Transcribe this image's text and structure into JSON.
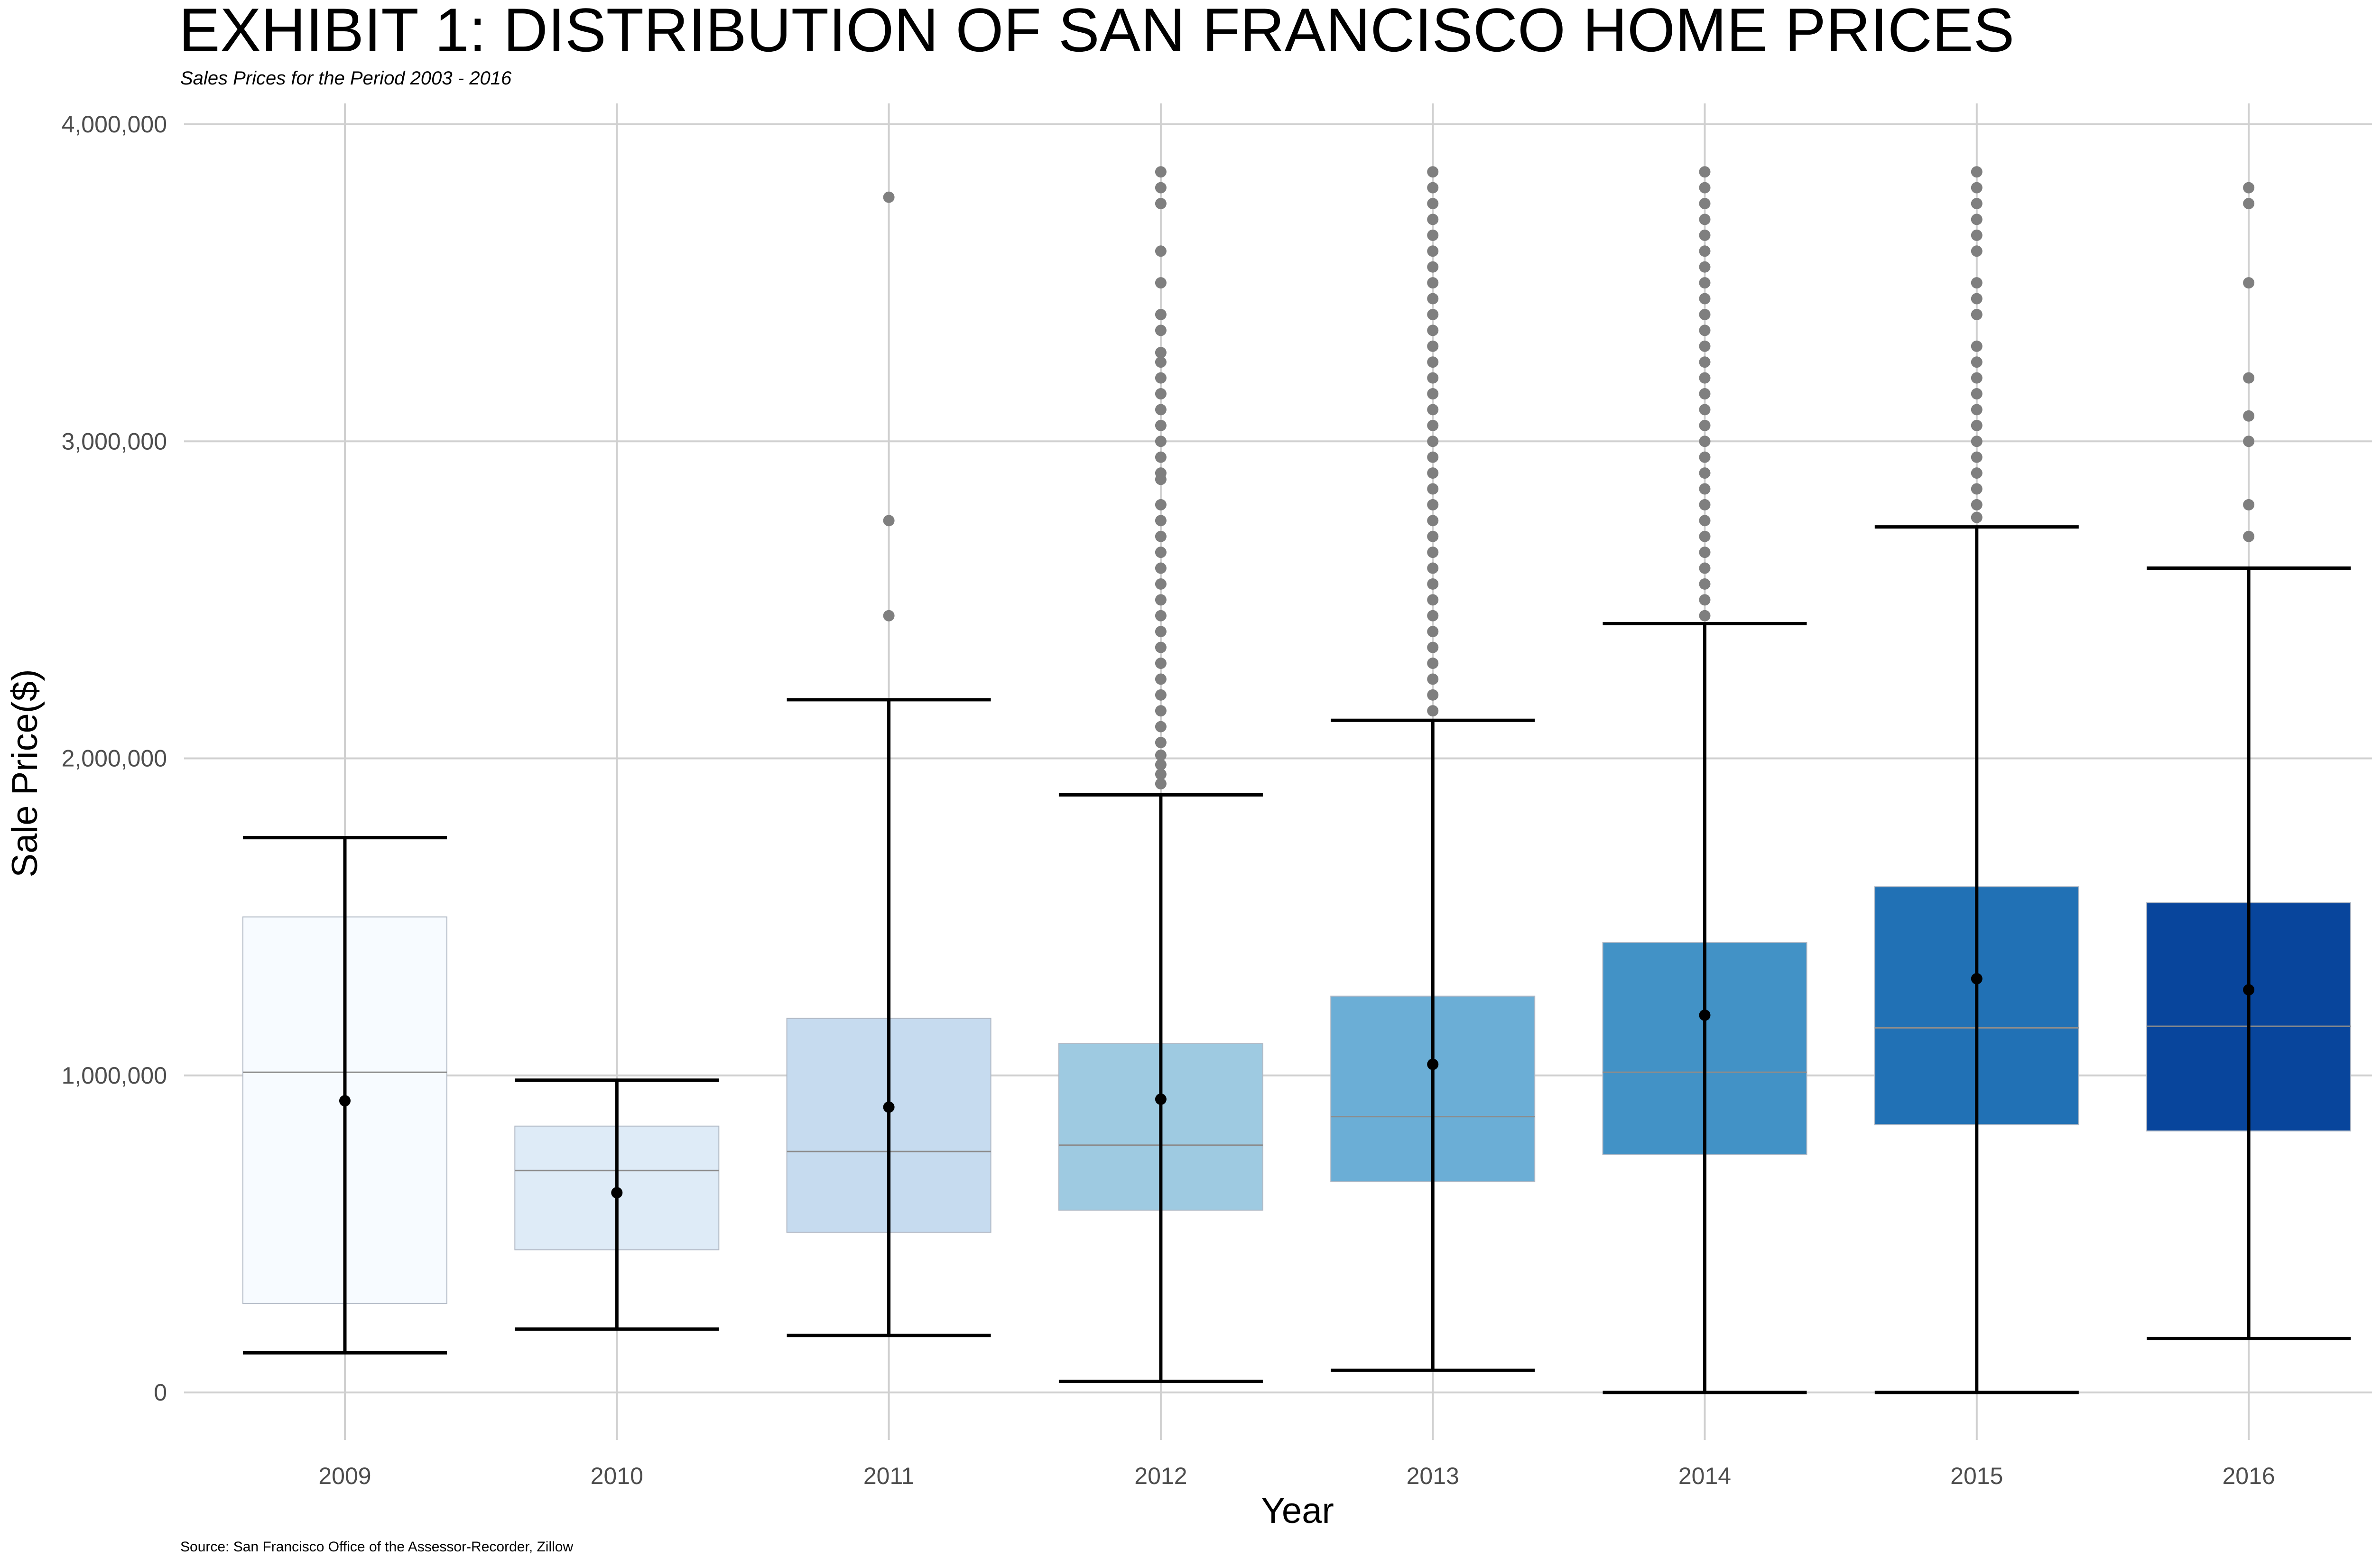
{
  "chart_data": {
    "type": "boxplot",
    "title": "EXHIBIT 1: DISTRIBUTION OF SAN FRANCISCO HOME PRICES",
    "subtitle": "Sales Prices for the Period 2003 - 2016",
    "xlabel": "Year",
    "ylabel": "Sale Price($)",
    "caption": "Source: San Francisco Office of the Assessor-Recorder, Zillow",
    "ylim": [
      -80000,
      4050000
    ],
    "yticks": [
      0,
      1000000,
      2000000,
      3000000,
      4000000
    ],
    "ytick_labels": [
      "0",
      "1,000,000",
      "2,000,000",
      "3,000,000",
      "4,000,000"
    ],
    "grid": true,
    "categories": [
      "2009",
      "2010",
      "2011",
      "2012",
      "2013",
      "2014",
      "2015",
      "2016"
    ],
    "boxes": [
      {
        "year": "2009",
        "q1": 280000,
        "median": 1010000,
        "q3": 1500000,
        "whisker_low": 125000,
        "whisker_high": 1750000,
        "mean": 920000,
        "color": "#f7fbff",
        "outliers": []
      },
      {
        "year": "2010",
        "q1": 450000,
        "median": 700000,
        "q3": 840000,
        "whisker_low": 200000,
        "whisker_high": 985000,
        "mean": 630000,
        "color": "#deebf7",
        "outliers": []
      },
      {
        "year": "2011",
        "q1": 505000,
        "median": 760000,
        "q3": 1180000,
        "whisker_low": 180000,
        "whisker_high": 2185000,
        "mean": 900000,
        "color": "#c6dbef",
        "outliers": [
          2450000,
          2750000,
          3770000
        ]
      },
      {
        "year": "2012",
        "q1": 575000,
        "median": 780000,
        "q3": 1100000,
        "whisker_low": 35000,
        "whisker_high": 1885000,
        "mean": 925000,
        "color": "#9ecae1",
        "outliers": [
          1920000,
          1950000,
          1980000,
          2010000,
          2050000,
          2100000,
          2150000,
          2200000,
          2250000,
          2300000,
          2350000,
          2400000,
          2450000,
          2500000,
          2550000,
          2600000,
          2650000,
          2700000,
          2750000,
          2800000,
          2880000,
          2900000,
          2950000,
          3000000,
          3050000,
          3100000,
          3150000,
          3200000,
          3250000,
          3280000,
          3350000,
          3400000,
          3500000,
          3600000,
          3750000,
          3800000,
          3850000
        ]
      },
      {
        "year": "2013",
        "q1": 665000,
        "median": 870000,
        "q3": 1250000,
        "whisker_low": 70000,
        "whisker_high": 2120000,
        "mean": 1035000,
        "color": "#6baed6",
        "outliers": [
          2150000,
          2200000,
          2250000,
          2300000,
          2350000,
          2400000,
          2450000,
          2500000,
          2550000,
          2600000,
          2650000,
          2700000,
          2750000,
          2800000,
          2850000,
          2900000,
          2950000,
          3000000,
          3050000,
          3100000,
          3150000,
          3200000,
          3250000,
          3300000,
          3350000,
          3400000,
          3450000,
          3500000,
          3550000,
          3600000,
          3650000,
          3700000,
          3750000,
          3800000,
          3850000
        ]
      },
      {
        "year": "2014",
        "q1": 750000,
        "median": 1010000,
        "q3": 1420000,
        "whisker_low": 0,
        "whisker_high": 2425000,
        "mean": 1190000,
        "color": "#4292c6",
        "outliers": [
          2450000,
          2500000,
          2550000,
          2600000,
          2650000,
          2700000,
          2750000,
          2800000,
          2850000,
          2900000,
          2950000,
          3000000,
          3050000,
          3100000,
          3150000,
          3200000,
          3250000,
          3300000,
          3350000,
          3400000,
          3450000,
          3500000,
          3550000,
          3600000,
          3650000,
          3700000,
          3750000,
          3800000,
          3850000
        ]
      },
      {
        "year": "2015",
        "q1": 845000,
        "median": 1150000,
        "q3": 1595000,
        "whisker_low": 0,
        "whisker_high": 2730000,
        "mean": 1305000,
        "color": "#2171b5",
        "outliers": [
          2760000,
          2800000,
          2850000,
          2900000,
          2950000,
          3000000,
          3050000,
          3100000,
          3150000,
          3200000,
          3250000,
          3300000,
          3400000,
          3450000,
          3500000,
          3600000,
          3650000,
          3700000,
          3750000,
          3800000,
          3850000
        ]
      },
      {
        "year": "2016",
        "q1": 825000,
        "median": 1155000,
        "q3": 1545000,
        "whisker_low": 170000,
        "whisker_high": 2600000,
        "mean": 1270000,
        "color": "#08459c",
        "outliers": [
          2700000,
          2800000,
          3000000,
          3080000,
          3200000,
          3500000,
          3750000,
          3800000
        ]
      }
    ]
  }
}
